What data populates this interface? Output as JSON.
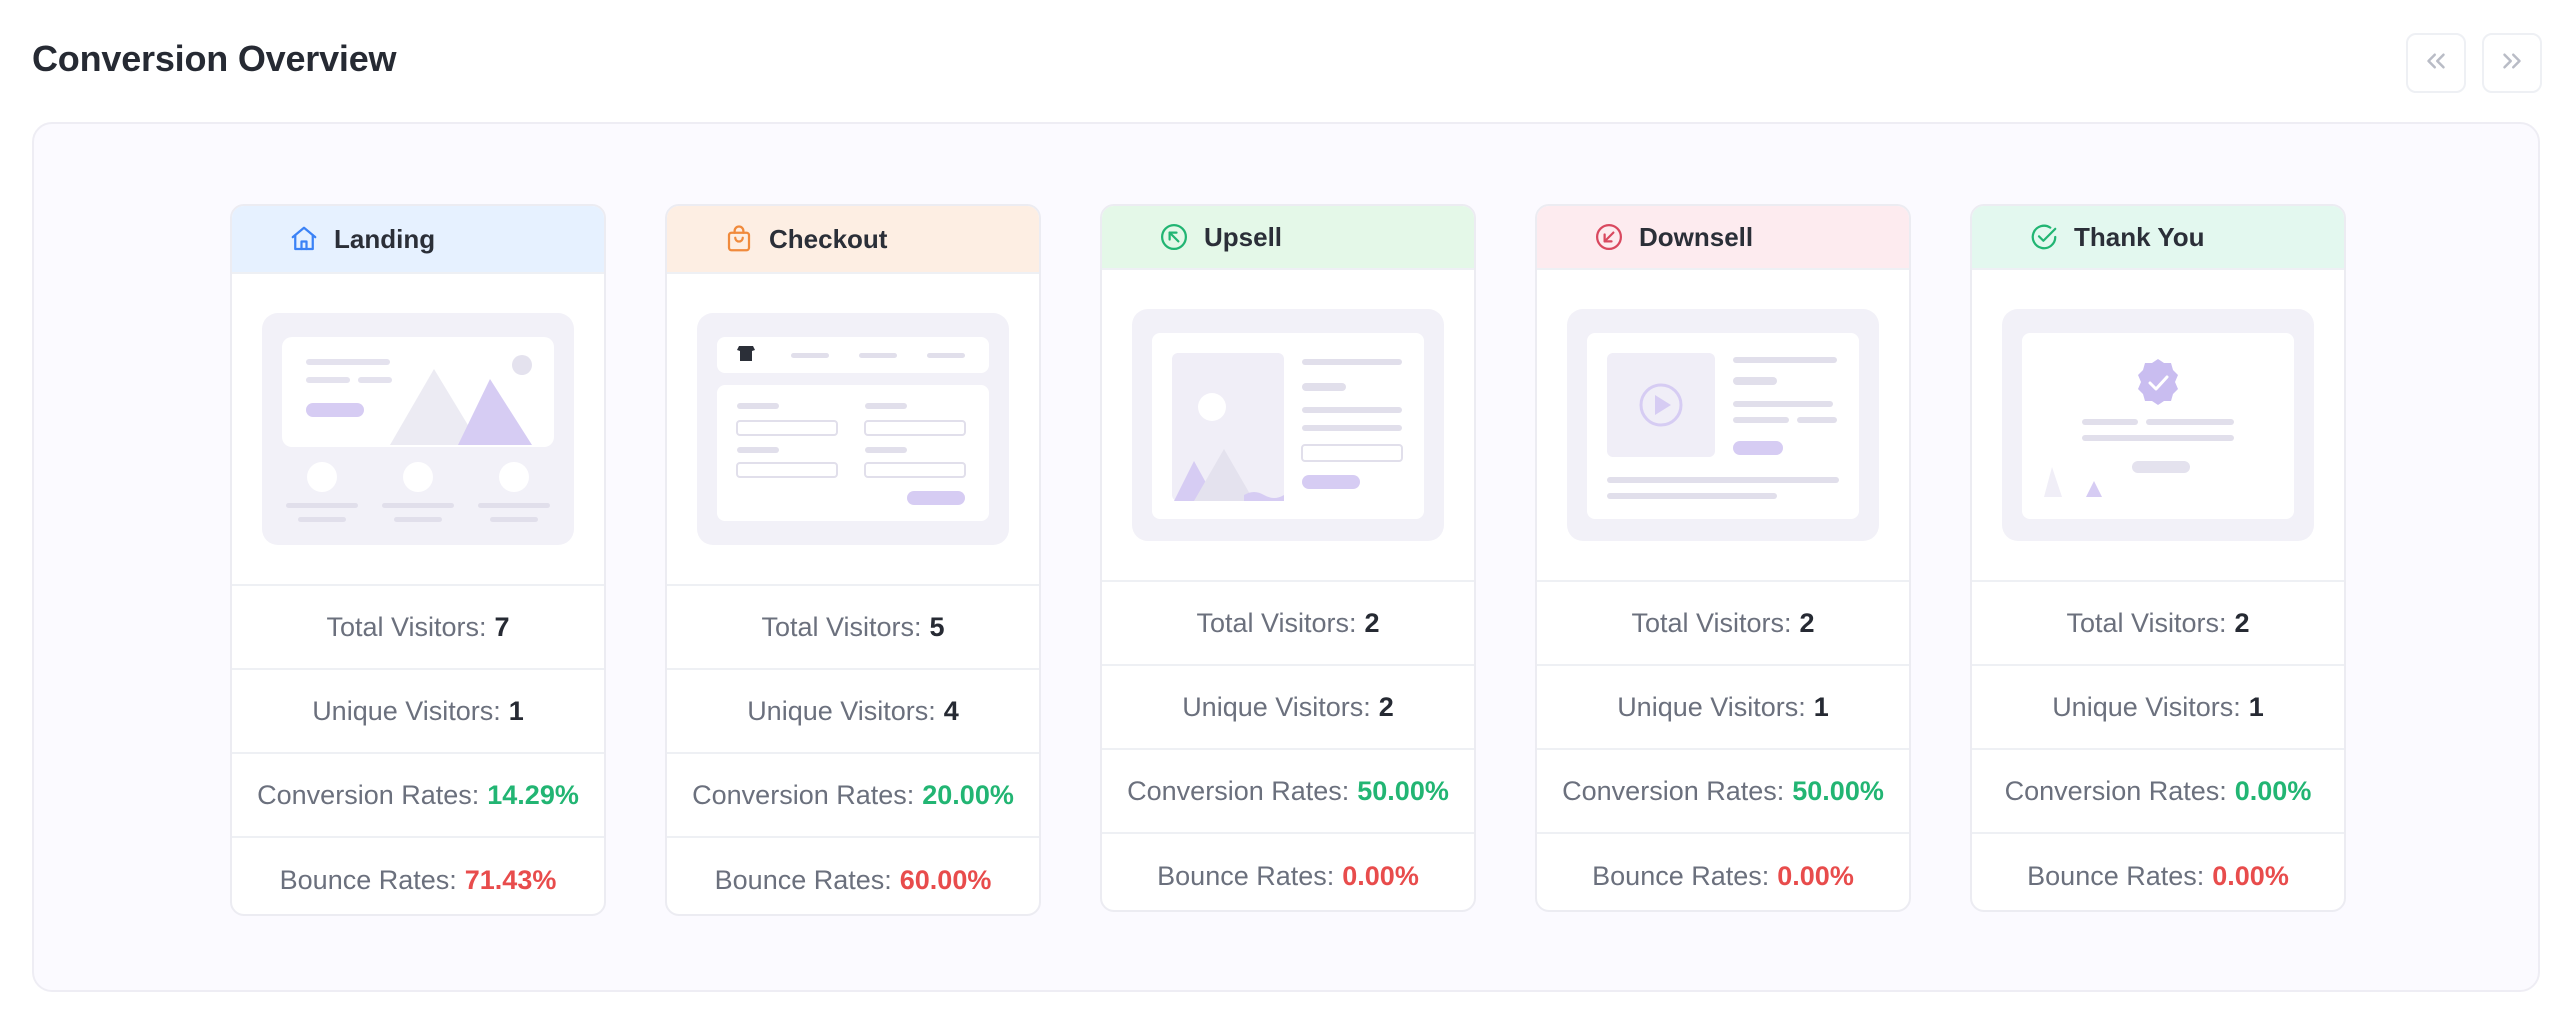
{
  "page": {
    "title": "Conversion Overview",
    "prev_icon": "chevrons-left-icon",
    "next_icon": "chevrons-right-icon"
  },
  "labels": {
    "total": "Total Visitors:",
    "unique": "Unique Visitors:",
    "conversion": "Conversion Rates:",
    "bounce": "Bounce Rates:"
  },
  "colors": {
    "good": "#22b573",
    "bad": "#e84c4c",
    "landing_head": "#e6f1ff",
    "checkout_head": "#fdeee3",
    "upsell_head": "#e4f8e8",
    "downsell_head": "#fdebef",
    "thankyou_head": "#e3f8ef"
  },
  "steps": [
    {
      "name": "Landing",
      "icon": "home-icon",
      "total": "7",
      "unique": "1",
      "conversion": "14.29%",
      "bounce": "71.43%"
    },
    {
      "name": "Checkout",
      "icon": "shopping-bag-icon",
      "total": "5",
      "unique": "4",
      "conversion": "20.00%",
      "bounce": "60.00%"
    },
    {
      "name": "Upsell",
      "icon": "arrow-up-left-circle-icon",
      "total": "2",
      "unique": "2",
      "conversion": "50.00%",
      "bounce": "0.00%"
    },
    {
      "name": "Downsell",
      "icon": "arrow-down-left-circle-icon",
      "total": "2",
      "unique": "1",
      "conversion": "50.00%",
      "bounce": "0.00%"
    },
    {
      "name": "Thank You",
      "icon": "check-circle-icon",
      "total": "2",
      "unique": "1",
      "conversion": "0.00%",
      "bounce": "0.00%"
    }
  ]
}
